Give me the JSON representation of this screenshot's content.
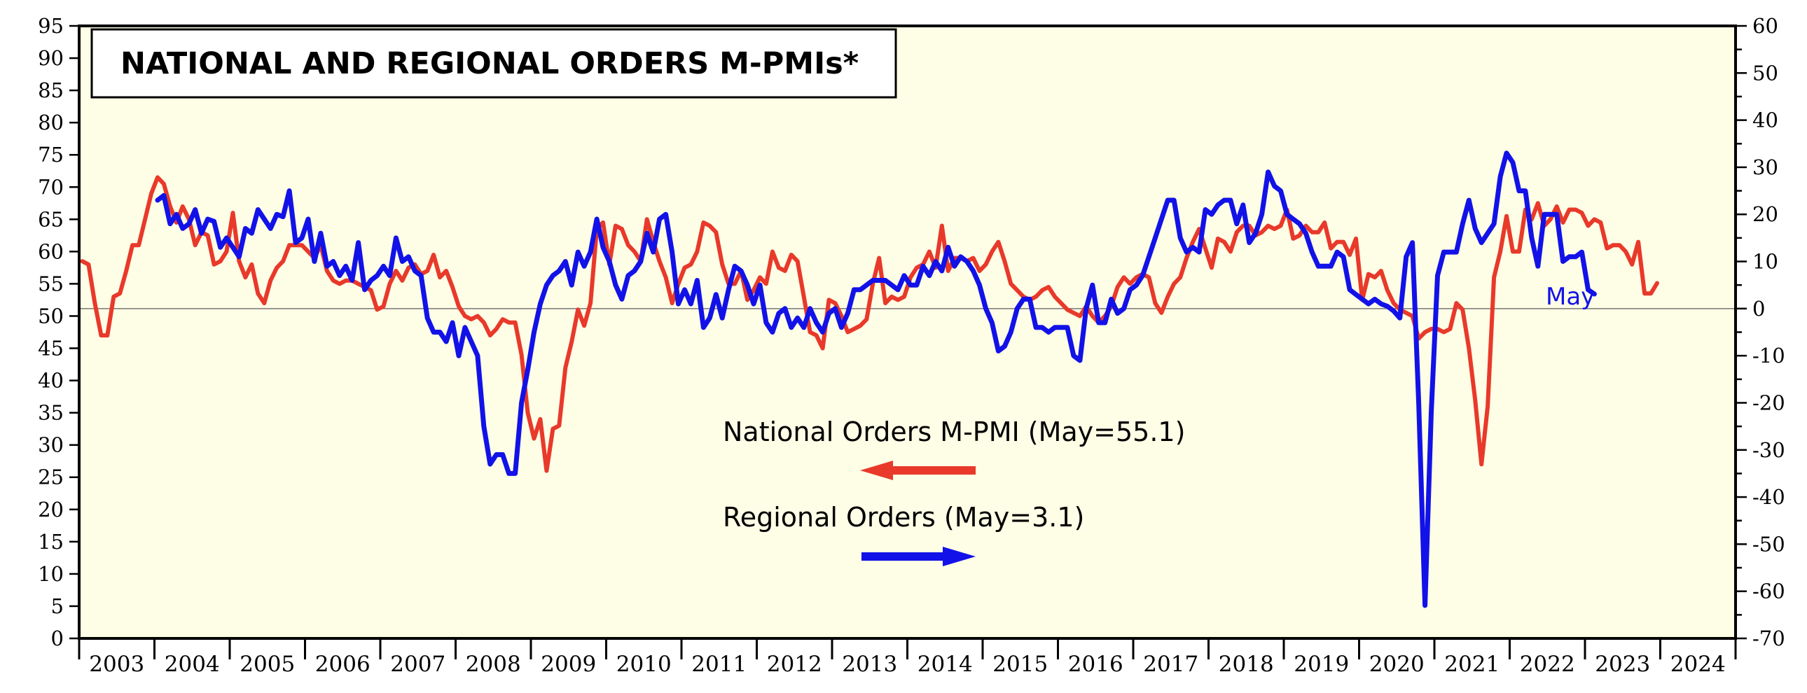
{
  "chart_data": {
    "type": "line",
    "title": "NATIONAL AND REGIONAL ORDERS M-PMIs*",
    "background": "#fefde6",
    "y_left": {
      "min": 0,
      "max": 95,
      "step": 5
    },
    "y_right": {
      "min": -70,
      "max": 60,
      "step": 10,
      "minor_step": 5
    },
    "x_years": [
      "2003",
      "2004",
      "2005",
      "2006",
      "2007",
      "2008",
      "2009",
      "2010",
      "2011",
      "2012",
      "2013",
      "2014",
      "2015",
      "2016",
      "2017",
      "2018",
      "2019",
      "2020",
      "2021",
      "2022",
      "2023",
      "2024"
    ],
    "reference_line": {
      "axis": "right",
      "value": 0
    },
    "end_label": "May",
    "series": [
      {
        "name": "National Orders M-PMI (May=55.1)",
        "axis": "left",
        "color": "#e8392a",
        "start": "2003-01",
        "values": [
          58.5,
          58,
          52,
          47,
          47,
          53,
          53.5,
          57,
          61,
          61,
          65,
          69,
          71.5,
          70.5,
          67,
          64.5,
          67,
          65,
          61,
          63,
          62.5,
          58,
          58.5,
          60,
          66,
          58.5,
          56,
          58,
          53.5,
          52,
          55.5,
          57.5,
          58.5,
          61,
          61,
          61,
          60,
          59,
          61,
          57,
          55.5,
          55,
          55.5,
          55.5,
          55,
          54.5,
          54,
          51,
          51.5,
          55,
          57,
          55.5,
          57.5,
          58,
          56.5,
          57,
          59.5,
          56,
          57,
          54.5,
          51.5,
          50,
          49.5,
          50,
          49,
          47,
          48,
          49.5,
          49,
          49,
          44,
          35,
          31,
          34,
          26,
          32.5,
          33,
          42,
          46,
          51,
          48.5,
          52,
          63.5,
          64.5,
          58,
          64,
          63.5,
          61,
          60,
          58.5,
          65,
          61.5,
          58.5,
          56,
          52,
          55,
          57.5,
          58,
          60,
          64.5,
          64,
          63,
          58,
          55,
          55,
          57,
          52.5,
          54,
          56,
          55,
          60,
          57.5,
          57,
          59.5,
          58.5,
          53,
          47.5,
          47,
          45,
          52.5,
          52,
          50,
          47.5,
          48,
          48.5,
          49.5,
          55,
          59,
          52,
          53,
          52.5,
          53,
          56,
          57.5,
          58,
          60,
          57.5,
          64,
          57,
          59,
          59,
          58.5,
          59,
          57,
          58,
          60,
          61.5,
          58.5,
          55,
          54,
          53,
          52.5,
          53,
          54,
          54.5,
          53,
          52,
          51,
          50.5,
          50,
          51.5,
          50,
          49,
          50,
          51.5,
          54.5,
          56,
          55,
          56,
          56.5,
          56,
          52,
          50.5,
          53,
          55,
          56,
          59,
          61.5,
          63.5,
          60.5,
          57.5,
          62,
          61.5,
          60,
          63,
          64,
          64,
          62.5,
          63,
          64,
          63.5,
          64,
          66.5,
          62,
          62.5,
          64,
          63,
          63,
          64.5,
          60.5,
          61.5,
          61.5,
          59.5,
          62,
          52.5,
          56.5,
          56,
          57,
          54,
          52,
          51,
          50.5,
          50,
          46.5,
          47.5,
          48,
          48,
          47.5,
          48,
          52,
          51,
          45,
          37,
          27,
          36,
          56,
          60,
          65.5,
          60,
          60,
          66.5,
          65,
          67.5,
          64,
          65,
          67,
          64.5,
          66.5,
          66.5,
          66,
          64,
          65,
          64.5,
          60.5,
          61,
          61,
          60,
          58,
          61.5,
          53.5,
          53.5,
          55.1
        ]
      },
      {
        "name": "Regional Orders (May=3.1)",
        "axis": "right",
        "color": "#1212e8",
        "start": "2004-01",
        "values": [
          23,
          24,
          18,
          20,
          17,
          18,
          21,
          16,
          19,
          18.5,
          13,
          15,
          13,
          11,
          17,
          16,
          21,
          19,
          17,
          20,
          19.5,
          25,
          14,
          15,
          19,
          10,
          16,
          9,
          10,
          7,
          9,
          6,
          14,
          4,
          6,
          7,
          9,
          7,
          15,
          10,
          11,
          8,
          7,
          -2,
          -5,
          -5,
          -7,
          -3,
          -10,
          -4,
          -7,
          -10,
          -25,
          -33,
          -31,
          -31,
          -35,
          -35,
          -20,
          -13,
          -5,
          1,
          5,
          7,
          8,
          10,
          5,
          12,
          9,
          12,
          19,
          13,
          10,
          5,
          2,
          7,
          8,
          10,
          16,
          12,
          19,
          20,
          12,
          1,
          4,
          1,
          6,
          -4,
          -2,
          3,
          -2,
          4,
          9,
          8,
          5,
          1,
          5,
          -3,
          -5,
          -1,
          0,
          -4,
          -2,
          -4,
          0,
          -3,
          -5,
          -1,
          0,
          -4,
          -1,
          4,
          4,
          5,
          6,
          6,
          6,
          5,
          4,
          7,
          5,
          5,
          9,
          7,
          10,
          8,
          13,
          9,
          11,
          10,
          8,
          5,
          0,
          -3,
          -9,
          -8,
          -5,
          0,
          2,
          2,
          -4,
          -4,
          -5,
          -4,
          -4,
          -4,
          -10,
          -11,
          0,
          5,
          -3,
          -3,
          2,
          -1,
          0,
          4,
          5,
          7,
          11,
          15,
          19,
          23,
          23,
          15,
          12,
          13,
          12,
          21,
          20,
          22,
          23,
          23,
          18,
          22,
          14,
          16,
          20,
          29,
          26,
          25,
          20,
          19,
          18,
          16,
          12,
          9,
          9,
          9,
          12,
          11,
          4,
          3,
          2,
          1,
          2,
          1,
          0.5,
          -0.5,
          -2,
          11,
          14,
          -20,
          -63,
          -22,
          7,
          12,
          12,
          12,
          18,
          23,
          17,
          14,
          16,
          18,
          28,
          33,
          31,
          25,
          25,
          15,
          9,
          20,
          20,
          20,
          10,
          11,
          11,
          12,
          4,
          3.1
        ]
      }
    ]
  },
  "legend": {
    "national_label": "National Orders M-PMI (May=55.1)",
    "regional_label": "Regional Orders (May=3.1)"
  }
}
